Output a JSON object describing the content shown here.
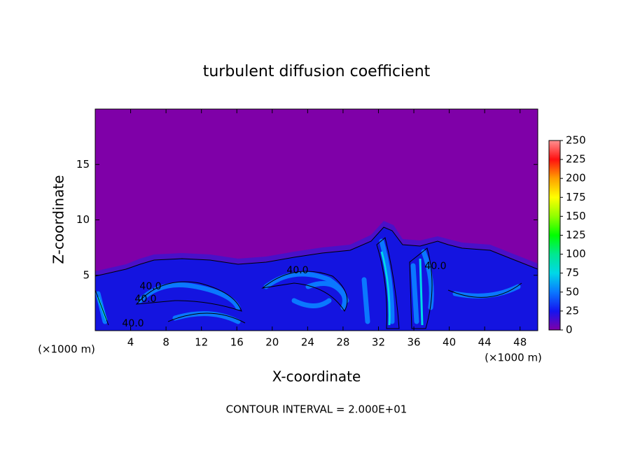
{
  "chart_data": {
    "type": "contour",
    "title": "turbulent diffusion coefficient",
    "x_label": "X-coordinate",
    "y_label": "Z-coordinate",
    "x_unit_label": "(×1000 m)",
    "y_unit_label": "(×1000 m)",
    "footnote": "CONTOUR INTERVAL = 2.000E+01",
    "xlim": [
      0,
      50
    ],
    "xticks": [
      4,
      8,
      12,
      16,
      20,
      24,
      28,
      32,
      36,
      40,
      44,
      48
    ],
    "ylim": [
      0,
      20
    ],
    "yticks": [
      5,
      10,
      15
    ],
    "contour_labels": [
      "40.0",
      "40.0",
      "40.0",
      "40.0",
      "40.0"
    ],
    "colorbar_lim": [
      0,
      250
    ],
    "colorbar_ticks": [
      0,
      25,
      50,
      75,
      100,
      125,
      150,
      175,
      200,
      225,
      250
    ],
    "colors": [
      "#7f00a8",
      "#1414f0",
      "#0a78ff",
      "#00d8e8",
      "#00e890",
      "#00ff00",
      "#90ff00",
      "#ffff00",
      "#ffa000",
      "#ff1010",
      "#ff9090"
    ]
  }
}
